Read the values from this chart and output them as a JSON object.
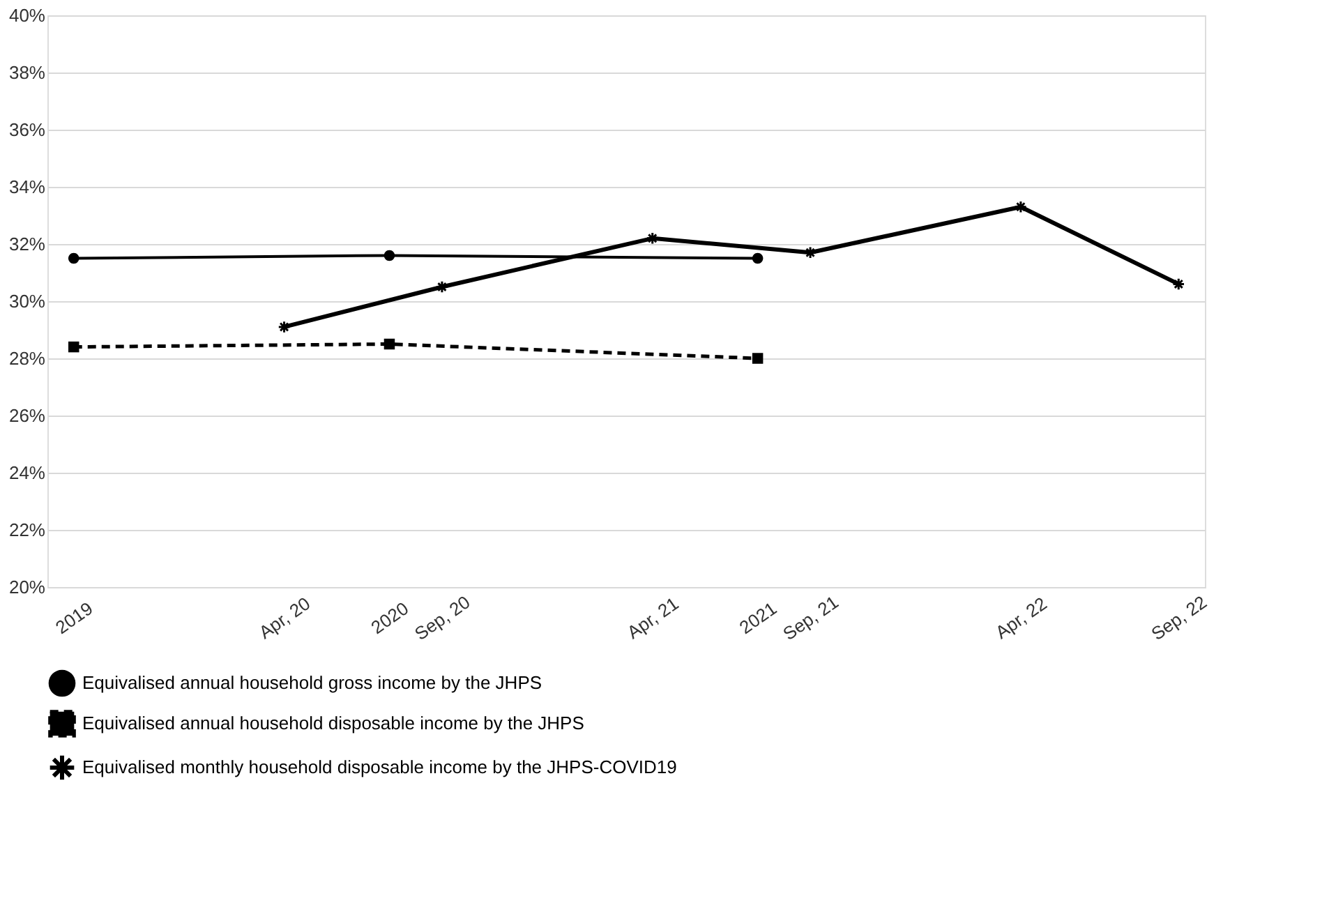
{
  "chart_data": {
    "type": "line",
    "categories": [
      "2019",
      null,
      null,
      null,
      "Apr, 20",
      null,
      "2020",
      "Sep, 20",
      null,
      null,
      null,
      "Apr, 21",
      null,
      "2021",
      "Sep, 21",
      null,
      null,
      null,
      "Apr, 22",
      null,
      null,
      "Sep, 22"
    ],
    "series": [
      {
        "name": "Equivalised annual household gross income by the JHPS",
        "color": "#000000",
        "marker": "circle",
        "line_style": "solid",
        "values": [
          31.5,
          null,
          null,
          null,
          null,
          null,
          31.6,
          null,
          null,
          null,
          null,
          null,
          null,
          31.5,
          null,
          null,
          null,
          null,
          null,
          null,
          null,
          null
        ]
      },
      {
        "name": "Equivalised annual household disposable income by the JHPS",
        "color": "#000000",
        "marker": "square",
        "line_style": "dashed",
        "values": [
          28.4,
          null,
          null,
          null,
          null,
          null,
          28.5,
          null,
          null,
          null,
          null,
          null,
          null,
          28.0,
          null,
          null,
          null,
          null,
          null,
          null,
          null,
          null
        ]
      },
      {
        "name": "Equivalised monthly household disposable income by the JHPS-COVID19",
        "color": "#000000",
        "marker": "cross",
        "line_style": "solid",
        "values": [
          null,
          null,
          null,
          null,
          29.1,
          null,
          null,
          30.5,
          null,
          null,
          null,
          32.2,
          null,
          null,
          31.7,
          null,
          null,
          null,
          33.3,
          null,
          null,
          30.6
        ]
      }
    ],
    "ylim": [
      20,
      40
    ],
    "yticks": [
      {
        "value": 20,
        "label": "20%"
      },
      {
        "value": 22,
        "label": "22%"
      },
      {
        "value": 24,
        "label": "24%"
      },
      {
        "value": 26,
        "label": "26%"
      },
      {
        "value": 28,
        "label": "28%"
      },
      {
        "value": 30,
        "label": "30%"
      },
      {
        "value": 32,
        "label": "32%"
      },
      {
        "value": 34,
        "label": "34%"
      },
      {
        "value": 36,
        "label": "36%"
      },
      {
        "value": 38,
        "label": "38%"
      },
      {
        "value": 40,
        "label": "40%"
      }
    ],
    "grid": "y",
    "legend": "bottom"
  }
}
